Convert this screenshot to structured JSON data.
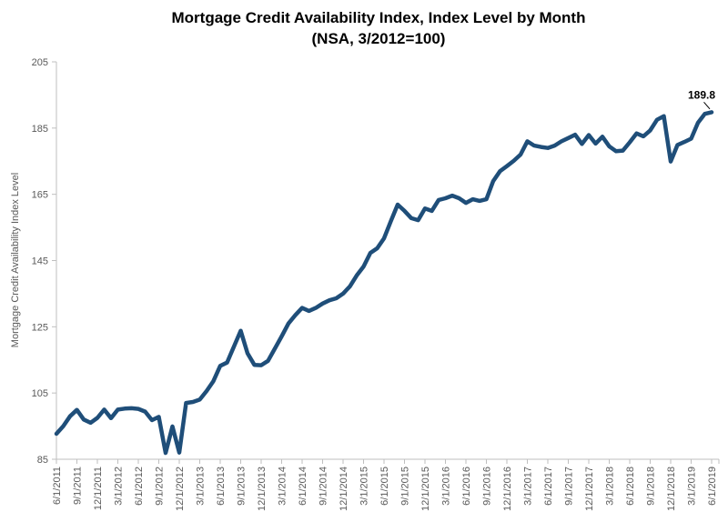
{
  "page": {
    "background": "#FFFFFF"
  },
  "chart_data": {
    "type": "line",
    "title": "Mortgage Credit Availability Index, Index Level by Month",
    "subtitle": "(NSA, 3/2012=100)",
    "ylabel": "Mortgage Credit Availability Index Level",
    "xlabel": "",
    "ylim": [
      85,
      205
    ],
    "yticks": [
      85,
      105,
      125,
      145,
      165,
      185,
      205
    ],
    "grid": false,
    "legend_position": "none",
    "line_color": "#1F4E79",
    "line_width": 4.5,
    "axis_color": "#BFBFBF",
    "tick_label_color": "#595959",
    "end_point_label": "189.8",
    "x_frequency": "monthly",
    "x_start": "6/1/2011",
    "x_end": "6/1/2019",
    "x_tick_labels": [
      "6/1/2011",
      "9/1/2011",
      "12/1/2011",
      "3/1/2012",
      "6/1/2012",
      "9/1/2012",
      "12/1/2012",
      "3/1/2013",
      "6/1/2013",
      "9/1/2013",
      "12/1/2013",
      "3/1/2014",
      "6/1/2014",
      "9/1/2014",
      "12/1/2014",
      "3/1/2015",
      "6/1/2015",
      "9/1/2015",
      "12/1/2015",
      "3/1/2016",
      "6/1/2016",
      "9/1/2016",
      "12/1/2016",
      "3/1/2017",
      "6/1/2017",
      "9/1/2017",
      "12/1/2017",
      "3/1/2018",
      "6/1/2018",
      "9/1/2018",
      "12/1/2018",
      "3/1/2019",
      "6/1/2019"
    ],
    "series": [
      {
        "name": "Mortgage Credit Availability Index (NSA)",
        "values": [
          92.7,
          95.0,
          98.0,
          99.9,
          97.0,
          96.0,
          97.5,
          100.0,
          97.4,
          100.0,
          100.3,
          100.4,
          100.2,
          99.4,
          96.8,
          97.8,
          86.9,
          94.9,
          87.0,
          102.0,
          102.3,
          103.0,
          105.6,
          108.6,
          113.2,
          114.2,
          119.0,
          123.8,
          117.0,
          113.5,
          113.4,
          114.7,
          118.4,
          122.1,
          126.0,
          128.5,
          130.7,
          129.8,
          130.7,
          132.0,
          133.0,
          133.6,
          135.0,
          137.2,
          140.5,
          143.2,
          147.3,
          148.7,
          151.7,
          156.9,
          161.9,
          160.0,
          157.8,
          157.2,
          160.7,
          160.0,
          163.3,
          163.8,
          164.6,
          163.8,
          162.4,
          163.5,
          163.0,
          163.5,
          169.0,
          172.0,
          173.5,
          175.1,
          177.0,
          181.0,
          179.7,
          179.3,
          179.0,
          179.7,
          181.0,
          182.0,
          183.0,
          180.2,
          182.9,
          180.3,
          182.4,
          179.5,
          178.0,
          178.2,
          180.7,
          183.4,
          182.5,
          184.3,
          187.5,
          188.6,
          174.9,
          179.9,
          180.8,
          181.8,
          186.6,
          189.3,
          189.8
        ]
      }
    ]
  }
}
